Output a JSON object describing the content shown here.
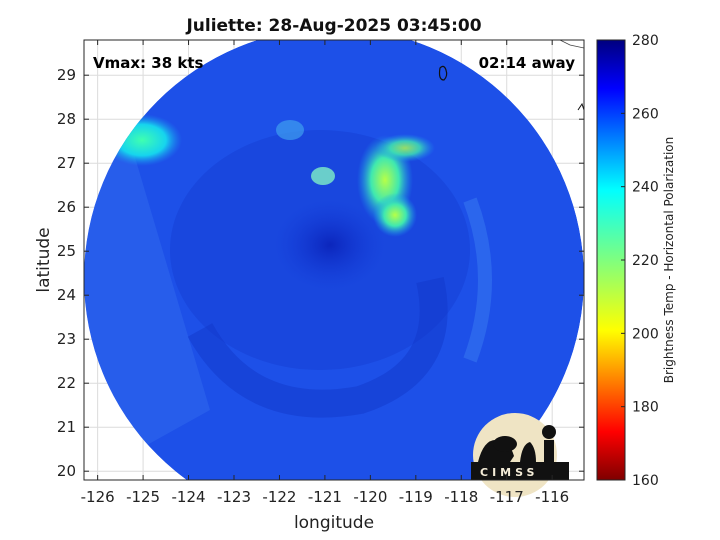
{
  "chart_data": {
    "type": "heatmap",
    "title": "Juliette: 28-Aug-2025 03:45:00",
    "xlabel": "longitude",
    "ylabel": "latitude",
    "xlim": [
      -126.3,
      -115.3
    ],
    "ylim": [
      19.8,
      29.8
    ],
    "x_ticks": [
      -126,
      -125,
      -124,
      -123,
      -122,
      -121,
      -120,
      -119,
      -118,
      -117,
      -116
    ],
    "y_ticks": [
      20,
      21,
      22,
      23,
      24,
      25,
      26,
      27,
      28,
      29
    ],
    "grid": true,
    "annotations": {
      "vmax": "Vmax: 38 kts",
      "time_offset": "02:14 away"
    },
    "colorbar": {
      "label": "Brightness Temp - Horizontal Polarization",
      "range": [
        160,
        280
      ],
      "ticks": [
        160,
        180,
        200,
        220,
        240,
        260,
        280
      ],
      "colormap": "jet"
    },
    "features": [
      {
        "name": "background",
        "tb": 262
      },
      {
        "name": "storm-center",
        "lon": -120.5,
        "lat": 25.2,
        "tb": 270
      },
      {
        "name": "convective-band",
        "lon": -119.7,
        "lat": 26.4,
        "tb": 213
      },
      {
        "name": "warm-patch",
        "lon": -125.0,
        "lat": 27.6,
        "tb": 235
      }
    ],
    "logo_text": "CIMSS"
  }
}
